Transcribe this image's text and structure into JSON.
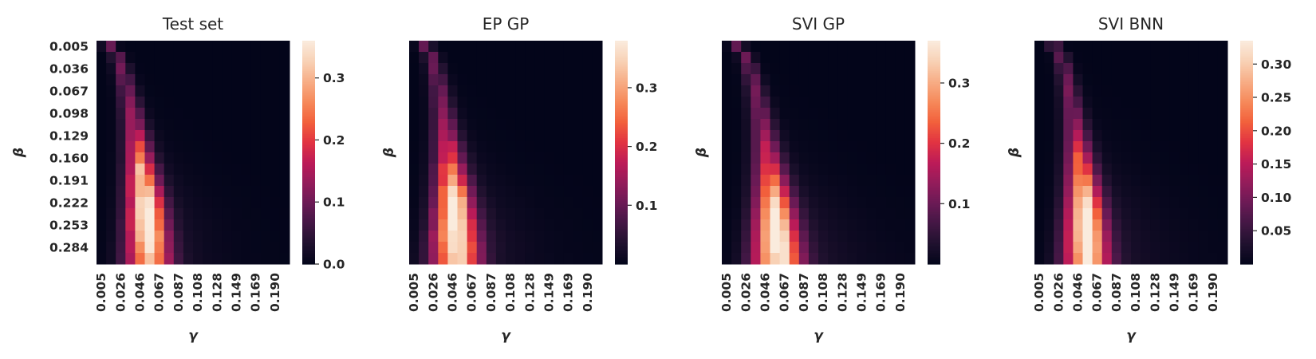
{
  "chart_data": [
    {
      "type": "heatmap",
      "title": "Test set",
      "xlabel": "γ",
      "ylabel": "β",
      "x_ticks": [
        "0.005",
        "0.026",
        "0.046",
        "0.067",
        "0.087",
        "0.108",
        "0.128",
        "0.149",
        "0.169",
        "0.190"
      ],
      "y_ticks": [
        "0.005",
        "0.036",
        "0.067",
        "0.098",
        "0.129",
        "0.160",
        "0.191",
        "0.222",
        "0.253",
        "0.284"
      ],
      "colorbar": {
        "vmin": 0.0,
        "vmax": 0.36,
        "ticks": [
          "0.0",
          "0.1",
          "0.2",
          "0.3"
        ],
        "tick_values": [
          0.0,
          0.1,
          0.2,
          0.3
        ]
      },
      "grid_size": [
        20,
        20
      ],
      "ridge": {
        "ridge_start_col": 0.8,
        "ridge_end_col": 5.0,
        "ridge_bend": 3.0,
        "peak_value": 0.35,
        "peak_row": 15,
        "width_top": 0.5,
        "width_bottom": 1.6,
        "outer_tail": 1.2,
        "tail_level": 0.22,
        "noise": 0.05
      }
    },
    {
      "type": "heatmap",
      "title": "EP GP",
      "xlabel": "γ",
      "ylabel": "β",
      "x_ticks": [
        "0.005",
        "0.026",
        "0.046",
        "0.067",
        "0.087",
        "0.108",
        "0.128",
        "0.149",
        "0.169",
        "0.190"
      ],
      "y_ticks": [],
      "colorbar": {
        "vmin": 0.0,
        "vmax": 0.38,
        "ticks": [
          "0.1",
          "0.2",
          "0.3"
        ],
        "tick_values": [
          0.1,
          0.2,
          0.3
        ]
      },
      "grid_size": [
        20,
        20
      ],
      "ridge": {
        "ridge_start_col": 1.1,
        "ridge_end_col": 4.4,
        "ridge_bend": 3.2,
        "peak_value": 0.37,
        "peak_row": 16,
        "width_top": 0.55,
        "width_bottom": 1.7,
        "outer_tail": 1.3,
        "tail_level": 0.25,
        "noise": 0.07
      }
    },
    {
      "type": "heatmap",
      "title": "SVI GP",
      "xlabel": "γ",
      "ylabel": "β",
      "x_ticks": [
        "0.005",
        "0.026",
        "0.046",
        "0.067",
        "0.087",
        "0.108",
        "0.128",
        "0.149",
        "0.169",
        "0.190"
      ],
      "y_ticks": [],
      "colorbar": {
        "vmin": 0.0,
        "vmax": 0.37,
        "ticks": [
          "0.1",
          "0.2",
          "0.3"
        ],
        "tick_values": [
          0.1,
          0.2,
          0.3
        ]
      },
      "grid_size": [
        20,
        20
      ],
      "ridge": {
        "ridge_start_col": 1.1,
        "ridge_end_col": 5.3,
        "ridge_bend": 3.0,
        "peak_value": 0.36,
        "peak_row": 17,
        "width_top": 0.5,
        "width_bottom": 1.7,
        "outer_tail": 1.5,
        "tail_level": 0.24,
        "noise": 0.0
      }
    },
    {
      "type": "heatmap",
      "title": "SVI BNN",
      "xlabel": "γ",
      "ylabel": "β",
      "x_ticks": [
        "0.005",
        "0.026",
        "0.046",
        "0.067",
        "0.087",
        "0.108",
        "0.128",
        "0.149",
        "0.169",
        "0.190"
      ],
      "y_ticks": [],
      "colorbar": {
        "vmin": 0.0,
        "vmax": 0.335,
        "ticks": [
          "0.05",
          "0.10",
          "0.15",
          "0.20",
          "0.25",
          "0.30"
        ],
        "tick_values": [
          0.05,
          0.1,
          0.15,
          0.2,
          0.25,
          0.3
        ]
      },
      "grid_size": [
        20,
        20
      ],
      "ridge": {
        "ridge_start_col": 1.5,
        "ridge_end_col": 5.0,
        "ridge_bend": 3.0,
        "peak_value": 0.325,
        "peak_row": 16,
        "width_top": 0.5,
        "width_bottom": 1.6,
        "outer_tail": 1.5,
        "tail_level": 0.22,
        "noise": 0.0
      }
    }
  ],
  "colormap": [
    "#03051a",
    "#1f112e",
    "#421744",
    "#6a1a55",
    "#931c5b",
    "#bc1b58",
    "#e13342",
    "#f2603c",
    "#f6895a",
    "#f7ad86",
    "#f8d1b5",
    "#faebdd"
  ]
}
